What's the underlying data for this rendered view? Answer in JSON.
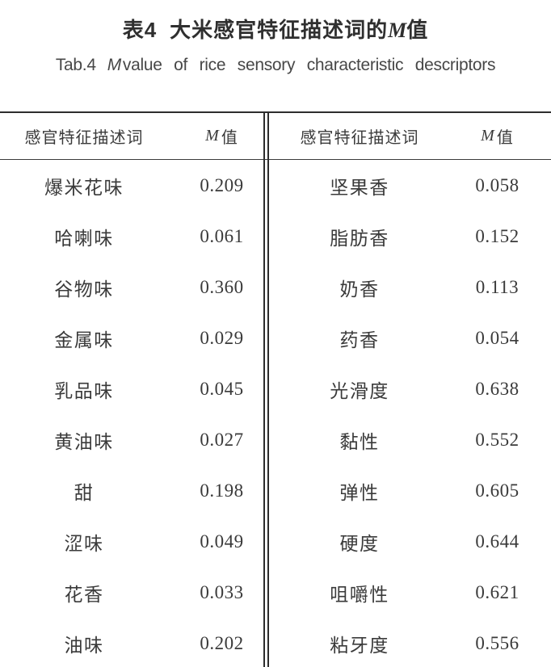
{
  "page": {
    "background": "#ffffff",
    "text_color": "#3a3a3a",
    "rule_color": "#2d2d2d"
  },
  "title": {
    "zh": {
      "index": "表4",
      "before_m": "大米感官特征描述词的",
      "m": "M",
      "after_m": "值"
    },
    "en": {
      "index": "Tab.4",
      "m": "M",
      "rest": "value of rice sensory characteristic descriptors"
    }
  },
  "table": {
    "header": {
      "term_label": "感官特征描述词",
      "m": "M",
      "value_char": "值"
    },
    "left_rows": [
      {
        "term": "爆米花味",
        "value": "0.209"
      },
      {
        "term": "哈喇味",
        "value": "0.061"
      },
      {
        "term": "谷物味",
        "value": "0.360"
      },
      {
        "term": "金属味",
        "value": "0.029"
      },
      {
        "term": "乳品味",
        "value": "0.045"
      },
      {
        "term": "黄油味",
        "value": "0.027"
      },
      {
        "term": "甜",
        "value": "0.198"
      },
      {
        "term": "涩味",
        "value": "0.049"
      },
      {
        "term": "花香",
        "value": "0.033"
      },
      {
        "term": "油味",
        "value": "0.202"
      }
    ],
    "right_rows": [
      {
        "term": "坚果香",
        "value": "0.058"
      },
      {
        "term": "脂肪香",
        "value": "0.152"
      },
      {
        "term": "奶香",
        "value": "0.113"
      },
      {
        "term": "药香",
        "value": "0.054"
      },
      {
        "term": "光滑度",
        "value": "0.638"
      },
      {
        "term": "黏性",
        "value": "0.552"
      },
      {
        "term": "弹性",
        "value": "0.605"
      },
      {
        "term": "硬度",
        "value": "0.644"
      },
      {
        "term": "咀嚼性",
        "value": "0.621"
      },
      {
        "term": "粘牙度",
        "value": "0.556"
      }
    ]
  }
}
